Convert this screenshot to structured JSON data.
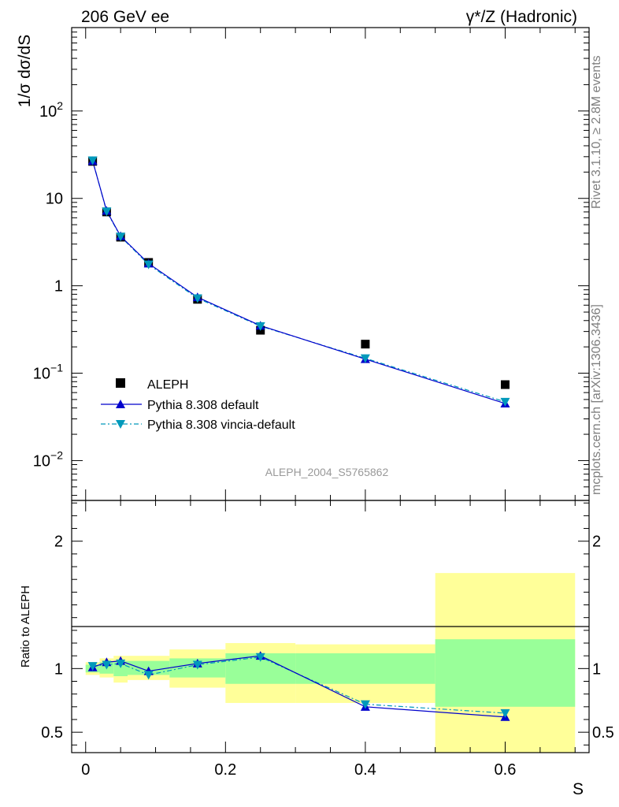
{
  "header": {
    "left": "206 GeV ee",
    "right": "γ*/Z (Hadronic)"
  },
  "side_labels": {
    "rivet": "Rivet 3.1.10, ≥ 2.8M events",
    "mcplots": "mcplots.cern.ch [arXiv:1306.3436]"
  },
  "colors": {
    "data": "#000000",
    "pythia_default": "#0000cc",
    "pythia_vincia": "#0099bb",
    "band_inner": "#99ff99",
    "band_outer": "#ffff99"
  },
  "chart_data": [
    {
      "type": "scatter",
      "title": "",
      "ylabel": "1/σ  dσ/dS",
      "yscale": "log",
      "xlim": [
        -0.02,
        0.72
      ],
      "ylim": [
        0.0035,
        900
      ],
      "y_ticks": [
        {
          "value": 0.01,
          "base": "10",
          "exp": "−2"
        },
        {
          "value": 0.1,
          "base": "10",
          "exp": "−1"
        },
        {
          "value": 1,
          "base": "1",
          "exp": ""
        },
        {
          "value": 10,
          "base": "10",
          "exp": ""
        },
        {
          "value": 100,
          "base": "10",
          "exp": "2"
        }
      ],
      "annotation": "ALEPH_2004_S5765862",
      "legend_position": "lower-left",
      "x": [
        0.01,
        0.03,
        0.05,
        0.09,
        0.16,
        0.25,
        0.4,
        0.6
      ],
      "series": [
        {
          "name": "ALEPH",
          "values": [
            26.5,
            7.0,
            3.6,
            1.85,
            0.7,
            0.31,
            0.215,
            0.074
          ]
        },
        {
          "name": "Pythia 8.308 default",
          "values": [
            26.8,
            7.2,
            3.7,
            1.8,
            0.74,
            0.35,
            0.145,
            0.045
          ]
        },
        {
          "name": "Pythia 8.308 vincia-default",
          "values": [
            27.2,
            7.1,
            3.65,
            1.75,
            0.72,
            0.345,
            0.148,
            0.047
          ]
        }
      ]
    },
    {
      "type": "line",
      "ylabel": "Ratio to ALEPH",
      "xlabel": "S",
      "xlim": [
        -0.02,
        0.72
      ],
      "ylim": [
        0.34,
        2.32
      ],
      "y_ticks": [
        0.5,
        1,
        2
      ],
      "x_ticks": [
        0,
        0.2,
        0.4,
        0.6
      ],
      "x": [
        0.01,
        0.03,
        0.05,
        0.09,
        0.16,
        0.25,
        0.4,
        0.6
      ],
      "series": [
        {
          "name": "Pythia 8.308 default",
          "values": [
            1.01,
            1.05,
            1.06,
            0.98,
            1.04,
            1.1,
            0.7,
            0.62
          ]
        },
        {
          "name": "Pythia 8.308 vincia-default",
          "values": [
            1.02,
            1.03,
            1.04,
            0.95,
            1.03,
            1.09,
            0.72,
            0.65
          ]
        }
      ],
      "uncertainty_bands": [
        {
          "x0": 0.0,
          "x1": 0.02,
          "inner": [
            0.97,
            1.03
          ],
          "outer": [
            0.95,
            1.05
          ]
        },
        {
          "x0": 0.02,
          "x1": 0.04,
          "inner": [
            0.96,
            1.05
          ],
          "outer": [
            0.93,
            1.08
          ]
        },
        {
          "x0": 0.04,
          "x1": 0.06,
          "inner": [
            0.94,
            1.06
          ],
          "outer": [
            0.89,
            1.1
          ]
        },
        {
          "x0": 0.06,
          "x1": 0.12,
          "inner": [
            0.95,
            1.06
          ],
          "outer": [
            0.91,
            1.1
          ]
        },
        {
          "x0": 0.12,
          "x1": 0.2,
          "inner": [
            0.93,
            1.08
          ],
          "outer": [
            0.85,
            1.15
          ]
        },
        {
          "x0": 0.2,
          "x1": 0.3,
          "inner": [
            0.88,
            1.12
          ],
          "outer": [
            0.73,
            1.2
          ]
        },
        {
          "x0": 0.3,
          "x1": 0.5,
          "inner": [
            0.88,
            1.12
          ],
          "outer": [
            0.73,
            1.19
          ]
        },
        {
          "x0": 0.5,
          "x1": 0.7,
          "inner": [
            0.7,
            1.23
          ],
          "outer": [
            0.34,
            1.75
          ]
        }
      ]
    }
  ]
}
